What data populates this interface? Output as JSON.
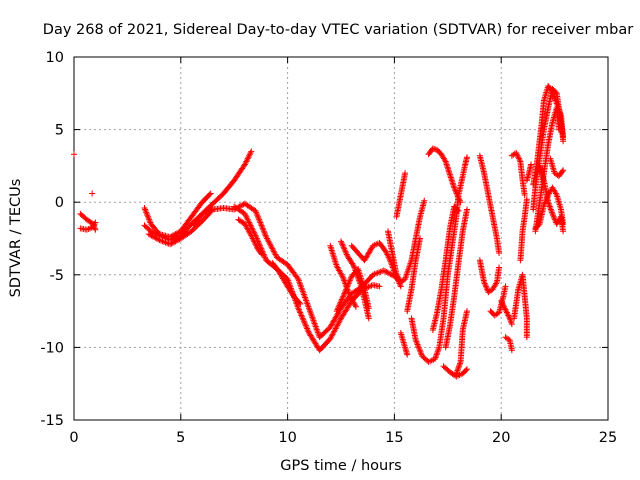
{
  "chart_data": {
    "type": "scatter",
    "title": "Day 268 of 2021, Sidereal Day-to-day VTEC variation (SDTVAR) for receiver mbar",
    "xlabel": "GPS time / hours",
    "ylabel": "SDTVAR / TECUs",
    "xlim": [
      0,
      25
    ],
    "ylim": [
      -15,
      10
    ],
    "x_ticks": [
      0,
      5,
      10,
      15,
      20,
      25
    ],
    "y_ticks": [
      -15,
      -10,
      -5,
      0,
      5,
      10
    ],
    "x_tick_labels": [
      "0",
      "5",
      "10",
      "15",
      "20",
      "25"
    ],
    "y_tick_labels": [
      "-15",
      "-10",
      "-5",
      "0",
      "5",
      "10"
    ],
    "grid": true,
    "marker": "+",
    "color": "#ff0000",
    "series": [
      {
        "tracks": [
          [
            [
              0.0,
              3.3
            ]
          ],
          [
            [
              0.85,
              0.6
            ]
          ],
          [
            [
              0.3,
              -0.8
            ],
            [
              0.6,
              -1.2
            ],
            [
              0.9,
              -1.5
            ],
            [
              1.0,
              -1.9
            ]
          ],
          [
            [
              0.3,
              -1.8
            ],
            [
              0.6,
              -1.9
            ],
            [
              0.9,
              -1.7
            ],
            [
              1.0,
              -1.4
            ]
          ],
          [
            [
              3.3,
              -1.6
            ],
            [
              3.6,
              -2.0
            ],
            [
              4.0,
              -2.3
            ],
            [
              4.5,
              -2.6
            ],
            [
              5.0,
              -2.3
            ],
            [
              5.5,
              -1.5
            ],
            [
              6.0,
              -0.8
            ],
            [
              6.5,
              -0.1
            ],
            [
              7.0,
              0.6
            ],
            [
              7.5,
              1.5
            ],
            [
              8.0,
              2.6
            ],
            [
              8.3,
              3.5
            ]
          ],
          [
            [
              3.3,
              -0.4
            ],
            [
              3.6,
              -1.5
            ],
            [
              4.0,
              -2.2
            ],
            [
              4.5,
              -2.4
            ],
            [
              5.0,
              -2.0
            ],
            [
              5.5,
              -1.0
            ],
            [
              6.0,
              0.0
            ],
            [
              6.4,
              0.6
            ]
          ],
          [
            [
              3.5,
              -2.2
            ],
            [
              4.0,
              -2.6
            ],
            [
              4.5,
              -2.9
            ],
            [
              5.0,
              -2.5
            ],
            [
              5.5,
              -2.0
            ],
            [
              6.0,
              -1.3
            ],
            [
              6.5,
              -0.5
            ]
          ],
          [
            [
              5.6,
              -1.6
            ],
            [
              6.0,
              -0.8
            ],
            [
              6.5,
              -0.5
            ],
            [
              7.0,
              -0.4
            ],
            [
              7.5,
              -0.5
            ],
            [
              8.0,
              -0.1
            ],
            [
              8.5,
              -0.6
            ],
            [
              9.0,
              -2.4
            ],
            [
              9.5,
              -3.8
            ],
            [
              10.0,
              -4.3
            ],
            [
              10.5,
              -5.3
            ],
            [
              11.0,
              -7.3
            ],
            [
              11.5,
              -9.3
            ],
            [
              12.0,
              -8.6
            ],
            [
              12.5,
              -7.3
            ],
            [
              13.0,
              -6.3
            ],
            [
              13.5,
              -5.8
            ],
            [
              14.0,
              -5.0
            ],
            [
              14.5,
              -4.7
            ],
            [
              15.0,
              -5.1
            ],
            [
              15.3,
              -5.5
            ]
          ],
          [
            [
              7.5,
              -0.3
            ],
            [
              8.0,
              -0.8
            ],
            [
              8.5,
              -2.3
            ],
            [
              9.0,
              -4.0
            ],
            [
              9.5,
              -4.6
            ],
            [
              10.0,
              -5.3
            ],
            [
              10.5,
              -7.3
            ],
            [
              11.0,
              -9.0
            ],
            [
              11.5,
              -10.2
            ],
            [
              12.0,
              -9.4
            ],
            [
              12.5,
              -8.0
            ],
            [
              13.0,
              -6.8
            ],
            [
              13.5,
              -6.0
            ],
            [
              14.0,
              -5.7
            ],
            [
              14.3,
              -5.8
            ]
          ],
          [
            [
              7.7,
              -1.2
            ],
            [
              8.0,
              -1.5
            ],
            [
              8.3,
              -2.3
            ],
            [
              8.6,
              -3.2
            ],
            [
              8.8,
              -3.6
            ]
          ],
          [
            [
              9.3,
              -4.2
            ],
            [
              9.6,
              -4.8
            ],
            [
              10.0,
              -5.8
            ],
            [
              10.3,
              -6.5
            ],
            [
              10.6,
              -7.0
            ]
          ],
          [
            [
              12.3,
              -7.5
            ],
            [
              12.6,
              -6.5
            ],
            [
              12.8,
              -5.8
            ],
            [
              13.0,
              -5.1
            ],
            [
              13.3,
              -4.6
            ],
            [
              13.6,
              -6.0
            ],
            [
              13.8,
              -7.3
            ]
          ],
          [
            [
              12.0,
              -3.0
            ],
            [
              12.3,
              -4.4
            ],
            [
              12.6,
              -5.2
            ],
            [
              12.9,
              -6.4
            ],
            [
              13.2,
              -7.2
            ]
          ],
          [
            [
              12.5,
              -2.7
            ],
            [
              12.8,
              -3.7
            ],
            [
              13.1,
              -4.4
            ],
            [
              13.4,
              -5.6
            ],
            [
              13.6,
              -6.7
            ],
            [
              13.8,
              -8.0
            ]
          ],
          [
            [
              13.0,
              -3.0
            ],
            [
              13.3,
              -3.5
            ],
            [
              13.6,
              -4.0
            ],
            [
              14.0,
              -3.0
            ],
            [
              14.3,
              -2.8
            ],
            [
              14.6,
              -3.4
            ],
            [
              14.8,
              -4.0
            ],
            [
              15.0,
              -4.8
            ],
            [
              15.3,
              -5.8
            ]
          ],
          [
            [
              14.7,
              -2.0
            ],
            [
              14.9,
              -3.5
            ],
            [
              15.1,
              -5.0
            ],
            [
              15.3,
              -5.5
            ],
            [
              15.5,
              -5.3
            ],
            [
              15.8,
              -4.0
            ],
            [
              16.0,
              -2.5
            ],
            [
              16.2,
              -1.0
            ],
            [
              16.4,
              0.1
            ]
          ],
          [
            [
              15.1,
              -1.0
            ],
            [
              15.3,
              0.5
            ],
            [
              15.5,
              2.0
            ]
          ],
          [
            [
              15.3,
              -9.0
            ],
            [
              15.5,
              -10.0
            ],
            [
              15.6,
              -10.5
            ]
          ],
          [
            [
              15.6,
              -7.5
            ],
            [
              15.8,
              -6.0
            ],
            [
              16.0,
              -4.0
            ],
            [
              16.2,
              -2.5
            ]
          ],
          [
            [
              15.8,
              -8.0
            ],
            [
              16.0,
              -9.5
            ],
            [
              16.3,
              -10.6
            ],
            [
              16.6,
              -11.0
            ],
            [
              16.9,
              -10.8
            ],
            [
              17.1,
              -10.0
            ],
            [
              17.3,
              -8.0
            ],
            [
              17.5,
              -5.0
            ],
            [
              17.7,
              -3.0
            ],
            [
              17.9,
              -1.0
            ],
            [
              18.0,
              0.5
            ],
            [
              18.2,
              1.8
            ],
            [
              18.3,
              2.5
            ],
            [
              18.4,
              3.1
            ]
          ],
          [
            [
              16.6,
              3.3
            ],
            [
              16.8,
              3.7
            ],
            [
              17.0,
              3.6
            ],
            [
              17.2,
              3.3
            ],
            [
              17.4,
              2.8
            ],
            [
              17.6,
              1.9
            ],
            [
              17.8,
              1.0
            ],
            [
              18.0,
              0.3
            ],
            [
              18.1,
              0.0
            ]
          ],
          [
            [
              16.8,
              -8.8
            ],
            [
              17.0,
              -7.6
            ],
            [
              17.2,
              -6.0
            ],
            [
              17.4,
              -4.0
            ],
            [
              17.6,
              -1.8
            ],
            [
              17.8,
              -0.3
            ],
            [
              18.0,
              -0.6
            ]
          ],
          [
            [
              17.3,
              -11.3
            ],
            [
              17.6,
              -11.7
            ],
            [
              17.9,
              -12.0
            ],
            [
              18.2,
              -11.8
            ],
            [
              18.4,
              -11.5
            ]
          ],
          [
            [
              17.4,
              -10.0
            ],
            [
              17.6,
              -8.5
            ],
            [
              17.8,
              -6.5
            ],
            [
              18.0,
              -4.2
            ],
            [
              18.2,
              -2.0
            ],
            [
              18.4,
              -0.5
            ]
          ],
          [
            [
              17.9,
              -11.8
            ],
            [
              18.1,
              -11.0
            ],
            [
              18.2,
              -8.8
            ],
            [
              18.4,
              -7.5
            ]
          ],
          [
            [
              19.0,
              3.2
            ],
            [
              19.2,
              2.0
            ],
            [
              19.4,
              0.5
            ],
            [
              19.6,
              -1.0
            ],
            [
              19.8,
              -2.5
            ],
            [
              19.9,
              -3.5
            ]
          ],
          [
            [
              19.0,
              -4.0
            ],
            [
              19.2,
              -5.5
            ],
            [
              19.4,
              -6.2
            ],
            [
              19.6,
              -6.0
            ],
            [
              19.8,
              -5.5
            ],
            [
              19.9,
              -4.5
            ]
          ],
          [
            [
              19.5,
              -7.5
            ],
            [
              19.7,
              -7.8
            ],
            [
              19.9,
              -7.6
            ],
            [
              20.1,
              -6.5
            ],
            [
              20.2,
              -5.8
            ]
          ],
          [
            [
              20.0,
              -6.8
            ],
            [
              20.2,
              -7.4
            ],
            [
              20.4,
              -8.0
            ],
            [
              20.5,
              -8.4
            ]
          ],
          [
            [
              20.2,
              -9.3
            ],
            [
              20.4,
              -9.5
            ],
            [
              20.5,
              -10.2
            ]
          ],
          [
            [
              20.5,
              3.2
            ],
            [
              20.7,
              3.4
            ],
            [
              20.9,
              2.8
            ],
            [
              21.0,
              1.5
            ],
            [
              21.1,
              0.5
            ]
          ],
          [
            [
              20.6,
              -8.0
            ],
            [
              20.8,
              -6.0
            ],
            [
              21.0,
              -5.0
            ],
            [
              21.1,
              -6.5
            ],
            [
              21.2,
              -8.0
            ],
            [
              21.2,
              -9.3
            ]
          ],
          [
            [
              20.9,
              -4.0
            ],
            [
              21.0,
              -2.0
            ],
            [
              21.1,
              -1.0
            ],
            [
              21.2,
              0.2
            ]
          ],
          [
            [
              21.5,
              -0.5
            ],
            [
              21.6,
              1.0
            ],
            [
              21.8,
              3.0
            ],
            [
              22.0,
              5.0
            ],
            [
              22.2,
              6.5
            ],
            [
              22.4,
              7.8
            ],
            [
              22.6,
              7.5
            ],
            [
              22.8,
              5.5
            ],
            [
              22.9,
              4.5
            ]
          ],
          [
            [
              21.5,
              1.2
            ],
            [
              21.7,
              3.0
            ],
            [
              21.9,
              5.5
            ],
            [
              22.0,
              7.0
            ],
            [
              22.2,
              8.0
            ],
            [
              22.4,
              7.6
            ],
            [
              22.6,
              6.8
            ],
            [
              22.8,
              6.0
            ],
            [
              22.9,
              4.2
            ]
          ],
          [
            [
              21.6,
              -2.0
            ],
            [
              21.8,
              0.0
            ],
            [
              22.0,
              2.0
            ],
            [
              22.2,
              4.0
            ],
            [
              22.4,
              5.5
            ],
            [
              22.6,
              6.5
            ],
            [
              22.7,
              5.0
            ]
          ],
          [
            [
              21.6,
              -1.8
            ],
            [
              21.8,
              -1.5
            ],
            [
              22.0,
              -0.2
            ],
            [
              22.2,
              0.5
            ],
            [
              22.4,
              1.0
            ],
            [
              22.6,
              0.5
            ],
            [
              22.8,
              -0.5
            ],
            [
              22.9,
              -1.5
            ]
          ],
          [
            [
              21.8,
              2.5
            ],
            [
              22.0,
              1.5
            ],
            [
              22.2,
              0.0
            ],
            [
              22.4,
              -0.8
            ],
            [
              22.6,
              -1.5
            ],
            [
              22.8,
              -1.0
            ],
            [
              22.9,
              -2.0
            ]
          ],
          [
            [
              22.3,
              3.0
            ],
            [
              22.5,
              2.0
            ],
            [
              22.7,
              1.8
            ],
            [
              22.9,
              2.2
            ]
          ],
          [
            [
              21.2,
              1.5
            ],
            [
              21.3,
              2.0
            ],
            [
              21.4,
              2.6
            ]
          ]
        ]
      }
    ]
  }
}
